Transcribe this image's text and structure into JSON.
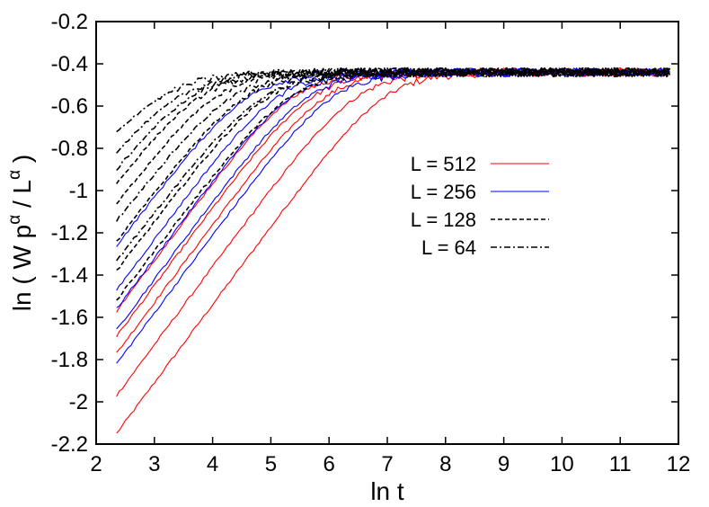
{
  "chart_data": {
    "type": "line",
    "title": "",
    "xlabel": "ln t",
    "ylabel": {
      "base": "ln ( W p",
      "sup1": "α",
      "mid": " / L",
      "sup2": "α",
      "end": " )"
    },
    "xlim": [
      2,
      12
    ],
    "ylim": [
      -2.2,
      -0.2
    ],
    "xticks": [
      "2",
      "3",
      "4",
      "5",
      "6",
      "7",
      "8",
      "9",
      "10",
      "11",
      "12"
    ],
    "yticks": [
      "-0.2",
      "-0.4",
      "-0.6",
      "-0.8",
      "-1",
      "-1.2",
      "-1.4",
      "-1.6",
      "-1.8",
      "-2",
      "-2.2"
    ],
    "xtick_values": [
      2,
      3,
      4,
      5,
      6,
      7,
      8,
      9,
      10,
      11,
      12
    ],
    "ytick_values": [
      -0.2,
      -0.4,
      -0.6,
      -0.8,
      -1.0,
      -1.2,
      -1.4,
      -1.6,
      -1.8,
      -2.0,
      -2.2
    ],
    "legend_position": "center-right",
    "legend": [
      {
        "label": "L = 512",
        "color": "#ff0000",
        "dash": "solid"
      },
      {
        "label": "L = 256",
        "color": "#0000ff",
        "dash": "solid"
      },
      {
        "label": "L = 128",
        "color": "#000000",
        "dash": "dashed"
      },
      {
        "label": "L = 64",
        "color": "#000000",
        "dash": "dashdot"
      }
    ],
    "x_start": 2.35,
    "plateau": -0.44,
    "series": [
      {
        "group": 512,
        "y_start": -2.15,
        "slope": 0.37
      },
      {
        "group": 512,
        "y_start": -1.97,
        "slope": 0.37
      },
      {
        "group": 512,
        "y_start": -1.77,
        "slope": 0.37
      },
      {
        "group": 512,
        "y_start": -1.69,
        "slope": 0.37
      },
      {
        "group": 512,
        "y_start": -1.57,
        "slope": 0.37
      },
      {
        "group": 256,
        "y_start": -1.82,
        "slope": 0.37
      },
      {
        "group": 256,
        "y_start": -1.66,
        "slope": 0.37
      },
      {
        "group": 256,
        "y_start": -1.56,
        "slope": 0.37
      },
      {
        "group": 256,
        "y_start": -1.47,
        "slope": 0.37
      },
      {
        "group": 256,
        "y_start": -1.26,
        "slope": 0.36
      },
      {
        "group": 128,
        "y_start": -1.52,
        "slope": 0.36
      },
      {
        "group": 128,
        "y_start": -1.38,
        "slope": 0.36
      },
      {
        "group": 128,
        "y_start": -1.24,
        "slope": 0.36
      },
      {
        "group": 128,
        "y_start": -1.06,
        "slope": 0.36
      },
      {
        "group": 128,
        "y_start": -0.96,
        "slope": 0.36
      },
      {
        "group": 64,
        "y_start": -1.33,
        "slope": 0.35
      },
      {
        "group": 64,
        "y_start": -1.14,
        "slope": 0.35
      },
      {
        "group": 64,
        "y_start": -0.89,
        "slope": 0.35
      },
      {
        "group": 64,
        "y_start": -0.8,
        "slope": 0.33
      },
      {
        "group": 64,
        "y_start": -0.69,
        "slope": 0.32
      }
    ]
  }
}
